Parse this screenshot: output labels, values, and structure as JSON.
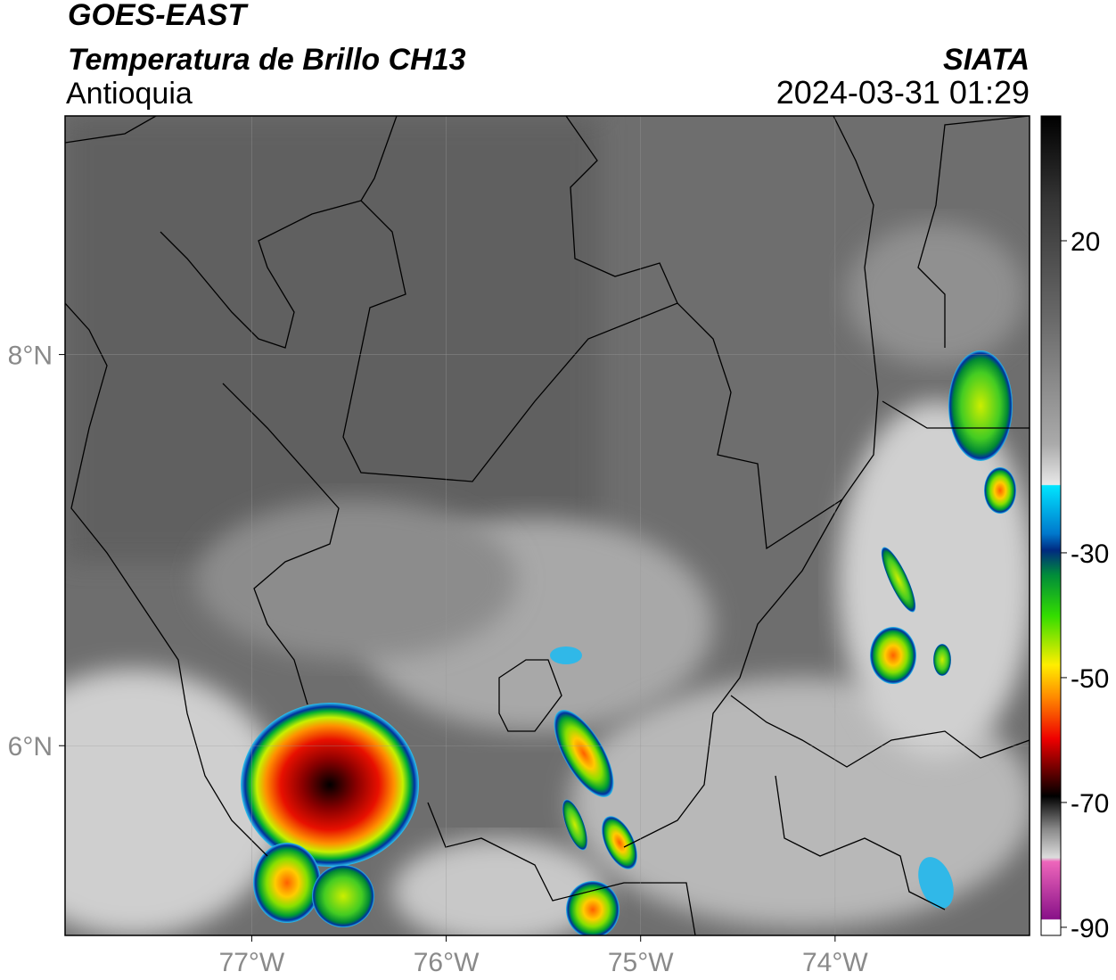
{
  "header": {
    "title": "GOES-EAST",
    "subtitle": "Temperatura de Brillo CH13",
    "region": "Antioquia",
    "source": "SIATA",
    "datetime": "2024-03-31 01:29"
  },
  "map": {
    "xlim": [
      -77.96,
      -73.0
    ],
    "ylim": [
      5.03,
      9.22
    ],
    "xticks": [
      {
        "value": -77,
        "label": "77°W"
      },
      {
        "value": -76,
        "label": "76°W"
      },
      {
        "value": -75,
        "label": "75°W"
      },
      {
        "value": -74,
        "label": "74°W"
      }
    ],
    "yticks": [
      {
        "value": 8,
        "label": "8°N"
      },
      {
        "value": 6,
        "label": "6°N"
      }
    ],
    "grid": true
  },
  "colorbar": {
    "lim": [
      -91.3,
      40
    ],
    "ticks": [
      20,
      -30,
      -50,
      -70,
      -90
    ]
  }
}
